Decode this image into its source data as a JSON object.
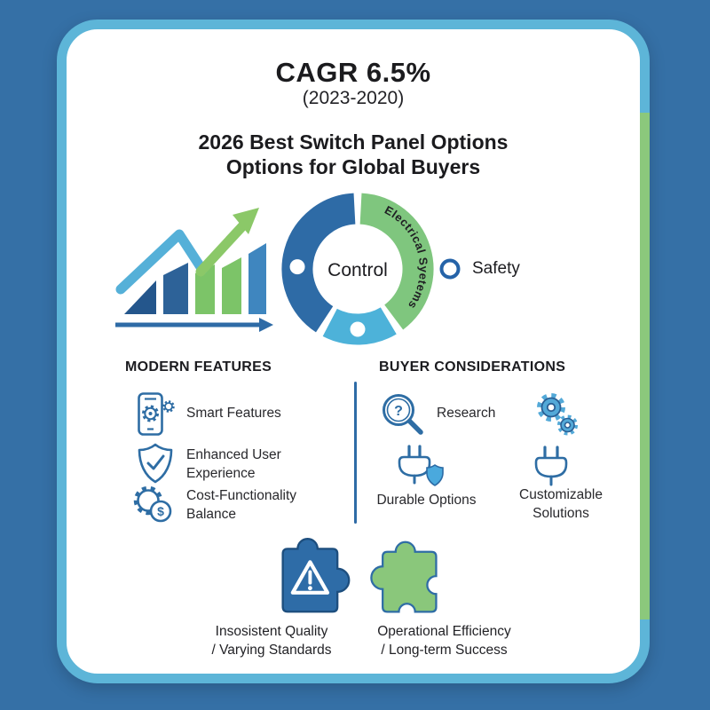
{
  "page": {
    "background_color": "#3570a6",
    "card": {
      "background": "#ffffff",
      "border_color": "#5db5d8",
      "accent_strip_color": "#8bc87c"
    },
    "palette": {
      "dark_blue": "#2e6ba6",
      "light_blue": "#4db2d9",
      "green": "#7fc67e",
      "icon_outline_blue": "#2e6da4"
    }
  },
  "header": {
    "cagr_title": "CAGR 6.5%",
    "cagr_period": "(2023-2020)",
    "title_line1": "2026 Best Switch Panel Options",
    "title_line2": "Options for Global Buyers"
  },
  "chart_data": {
    "type": "pie",
    "style": "donut",
    "title": "",
    "center_label": "Control",
    "legend_position": "right",
    "segments": [
      {
        "label": "Electrical Syetems",
        "value": 41,
        "color": "#7fc67e",
        "dot": false
      },
      {
        "label": "",
        "value": 17,
        "color": "#4db2d9",
        "dot": true,
        "dot_angle": 180
      },
      {
        "label": "",
        "value": 42,
        "color": "#2e6ba6",
        "dot": true,
        "dot_angle": 272
      }
    ],
    "legend": [
      {
        "label": "Safety",
        "marker": "ring",
        "marker_color": "#2563a8"
      }
    ]
  },
  "modern_features": {
    "heading": "MODERN FEATURES",
    "items": [
      {
        "icon": "smartphone-gear-icon",
        "label": "Smart Features"
      },
      {
        "icon": "shield-check-icon",
        "label": "Enhanced User Experience"
      },
      {
        "icon": "gear-dollar-icon",
        "label": "Cost-Functionality Balance",
        "glyph": "$"
      }
    ]
  },
  "buyer_considerations": {
    "heading": "BUYER CONSIDERATIONS",
    "items": [
      {
        "icon": "magnifier-question-icon",
        "label": "Research",
        "glyph": "?"
      },
      {
        "icon": "gears-icon",
        "label": ""
      },
      {
        "icon": "plug-shield-icon",
        "label": "Durable Options"
      },
      {
        "icon": "plug-icon",
        "label": "Customizable Solutions"
      }
    ]
  },
  "challenges": {
    "items": [
      {
        "icon": "puzzle-warning-icon",
        "color": "#2e6ca7",
        "line1": "Insosistent Quality",
        "line2": "/ Varying Standards"
      },
      {
        "icon": "puzzle-icon",
        "color": "#8ac77b",
        "line1": "Operational Efficiency",
        "line2": "/ Long-term Success"
      }
    ]
  }
}
